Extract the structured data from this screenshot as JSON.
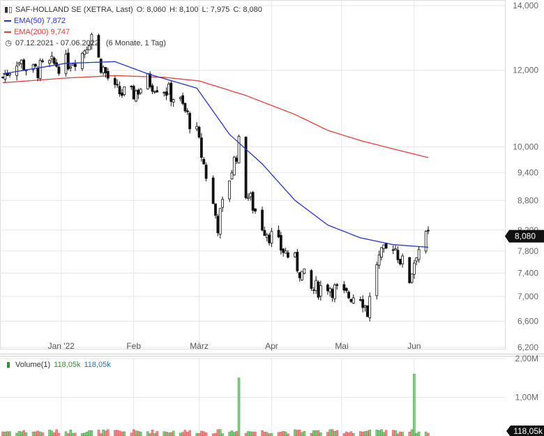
{
  "header": {
    "title": "SAF-HOLLAND SE (XETRA, Last)",
    "open_label": "O:",
    "open": "8,060",
    "high_label": "H:",
    "high": "8,100",
    "low_label": "L:",
    "low": "7,975",
    "close_label": "C:",
    "close": "8,080",
    "ema50_label": "EMA(50)",
    "ema50_value": "7,872",
    "ema200_label": "EMA(200)",
    "ema200_value": "9,747",
    "period": "07.12.2021 - 07.06.2022",
    "period_detail": "(6 Monate, 1 Tag)"
  },
  "volume_legend": {
    "label": "Volume(1)",
    "value_green": "118,05k",
    "value_blue": "118,05k"
  },
  "colors": {
    "up": "#3a9a3a",
    "down": "#e35050",
    "candle": "#111111",
    "ema50": "#2233cc",
    "ema200": "#e0403a",
    "grid": "#e6e6e6",
    "last_bg": "#111111"
  },
  "chart_data": {
    "type": "candlestick",
    "price_axis": {
      "scale": "log",
      "range": [
        6200,
        14000
      ],
      "ticks": [
        {
          "value": 14000,
          "label": "14,000"
        },
        {
          "value": 12000,
          "label": "12,000"
        },
        {
          "value": 10000,
          "label": "10,000"
        },
        {
          "value": 9400,
          "label": "9,400"
        },
        {
          "value": 8800,
          "label": "8,800"
        },
        {
          "value": 8200,
          "label": "8,200"
        },
        {
          "value": 7800,
          "label": "7,800"
        },
        {
          "value": 7400,
          "label": "7,400"
        },
        {
          "value": 7000,
          "label": "7,000"
        },
        {
          "value": 6600,
          "label": "6,600"
        },
        {
          "value": 6200,
          "label": "6,200"
        }
      ]
    },
    "x_axis": {
      "start": "2021-12-07",
      "end": "2022-06-07",
      "ticks": [
        {
          "date": "2022-01-01",
          "label": "Jan '22"
        },
        {
          "date": "2022-02-01",
          "label": "Feb"
        },
        {
          "date": "2022-03-01",
          "label": "März"
        },
        {
          "date": "2022-04-01",
          "label": "Apr"
        },
        {
          "date": "2022-05-01",
          "label": "Mai"
        },
        {
          "date": "2022-06-01",
          "label": "Jun"
        }
      ]
    },
    "last_price": {
      "value": 8080,
      "label": "8,080"
    },
    "closes": [
      {
        "date": "2021-12-07",
        "close": 11800
      },
      {
        "date": "2021-12-13",
        "close": 12300
      },
      {
        "date": "2021-12-20",
        "close": 11950
      },
      {
        "date": "2021-12-27",
        "close": 12150
      },
      {
        "date": "2022-01-03",
        "close": 12200
      },
      {
        "date": "2022-01-10",
        "close": 12500
      },
      {
        "date": "2022-01-14",
        "close": 13100
      },
      {
        "date": "2022-01-17",
        "close": 12300
      },
      {
        "date": "2022-01-24",
        "close": 11400
      },
      {
        "date": "2022-01-31",
        "close": 11300
      },
      {
        "date": "2022-02-07",
        "close": 11700
      },
      {
        "date": "2022-02-14",
        "close": 11500
      },
      {
        "date": "2022-02-21",
        "close": 11100
      },
      {
        "date": "2022-02-28",
        "close": 10300
      },
      {
        "date": "2022-03-07",
        "close": 8700
      },
      {
        "date": "2022-03-09",
        "close": 8300
      },
      {
        "date": "2022-03-14",
        "close": 9300
      },
      {
        "date": "2022-03-18",
        "close": 10050
      },
      {
        "date": "2022-03-21",
        "close": 9000
      },
      {
        "date": "2022-03-28",
        "close": 8300
      },
      {
        "date": "2022-04-04",
        "close": 7900
      },
      {
        "date": "2022-04-11",
        "close": 7600
      },
      {
        "date": "2022-04-18",
        "close": 7100
      },
      {
        "date": "2022-04-25",
        "close": 7200
      },
      {
        "date": "2022-05-02",
        "close": 7000
      },
      {
        "date": "2022-05-09",
        "close": 7050
      },
      {
        "date": "2022-05-12",
        "close": 6750
      },
      {
        "date": "2022-05-16",
        "close": 7600
      },
      {
        "date": "2022-05-23",
        "close": 7950
      },
      {
        "date": "2022-05-30",
        "close": 7300
      },
      {
        "date": "2022-06-02",
        "close": 7800
      },
      {
        "date": "2022-06-07",
        "close": 8080
      }
    ],
    "ema50": [
      {
        "date": "2021-12-07",
        "value": 11900
      },
      {
        "date": "2022-01-03",
        "value": 12200
      },
      {
        "date": "2022-01-24",
        "value": 12250
      },
      {
        "date": "2022-02-07",
        "value": 11900
      },
      {
        "date": "2022-02-28",
        "value": 11500
      },
      {
        "date": "2022-03-14",
        "value": 10300
      },
      {
        "date": "2022-03-28",
        "value": 9600
      },
      {
        "date": "2022-04-11",
        "value": 8800
      },
      {
        "date": "2022-04-25",
        "value": 8300
      },
      {
        "date": "2022-05-09",
        "value": 8050
      },
      {
        "date": "2022-05-23",
        "value": 7920
      },
      {
        "date": "2022-06-07",
        "value": 7872
      }
    ],
    "ema200": [
      {
        "date": "2021-12-07",
        "value": 11650
      },
      {
        "date": "2022-01-03",
        "value": 11780
      },
      {
        "date": "2022-01-24",
        "value": 11850
      },
      {
        "date": "2022-02-14",
        "value": 11800
      },
      {
        "date": "2022-03-01",
        "value": 11700
      },
      {
        "date": "2022-03-21",
        "value": 11300
      },
      {
        "date": "2022-04-11",
        "value": 10800
      },
      {
        "date": "2022-04-25",
        "value": 10400
      },
      {
        "date": "2022-05-09",
        "value": 10150
      },
      {
        "date": "2022-05-23",
        "value": 9950
      },
      {
        "date": "2022-06-07",
        "value": 9747
      }
    ],
    "volume_axis": {
      "range": [
        0,
        2000000
      ],
      "ticks": [
        {
          "value": 2000000,
          "label": "2,00M"
        },
        {
          "value": 1000000,
          "label": "1,00M"
        }
      ],
      "last": {
        "value": 118050,
        "label": "118,05k"
      }
    },
    "volume_spikes": [
      {
        "date": "2022-03-18",
        "value": 1500000
      },
      {
        "date": "2022-06-01",
        "value": 1600000
      }
    ]
  }
}
